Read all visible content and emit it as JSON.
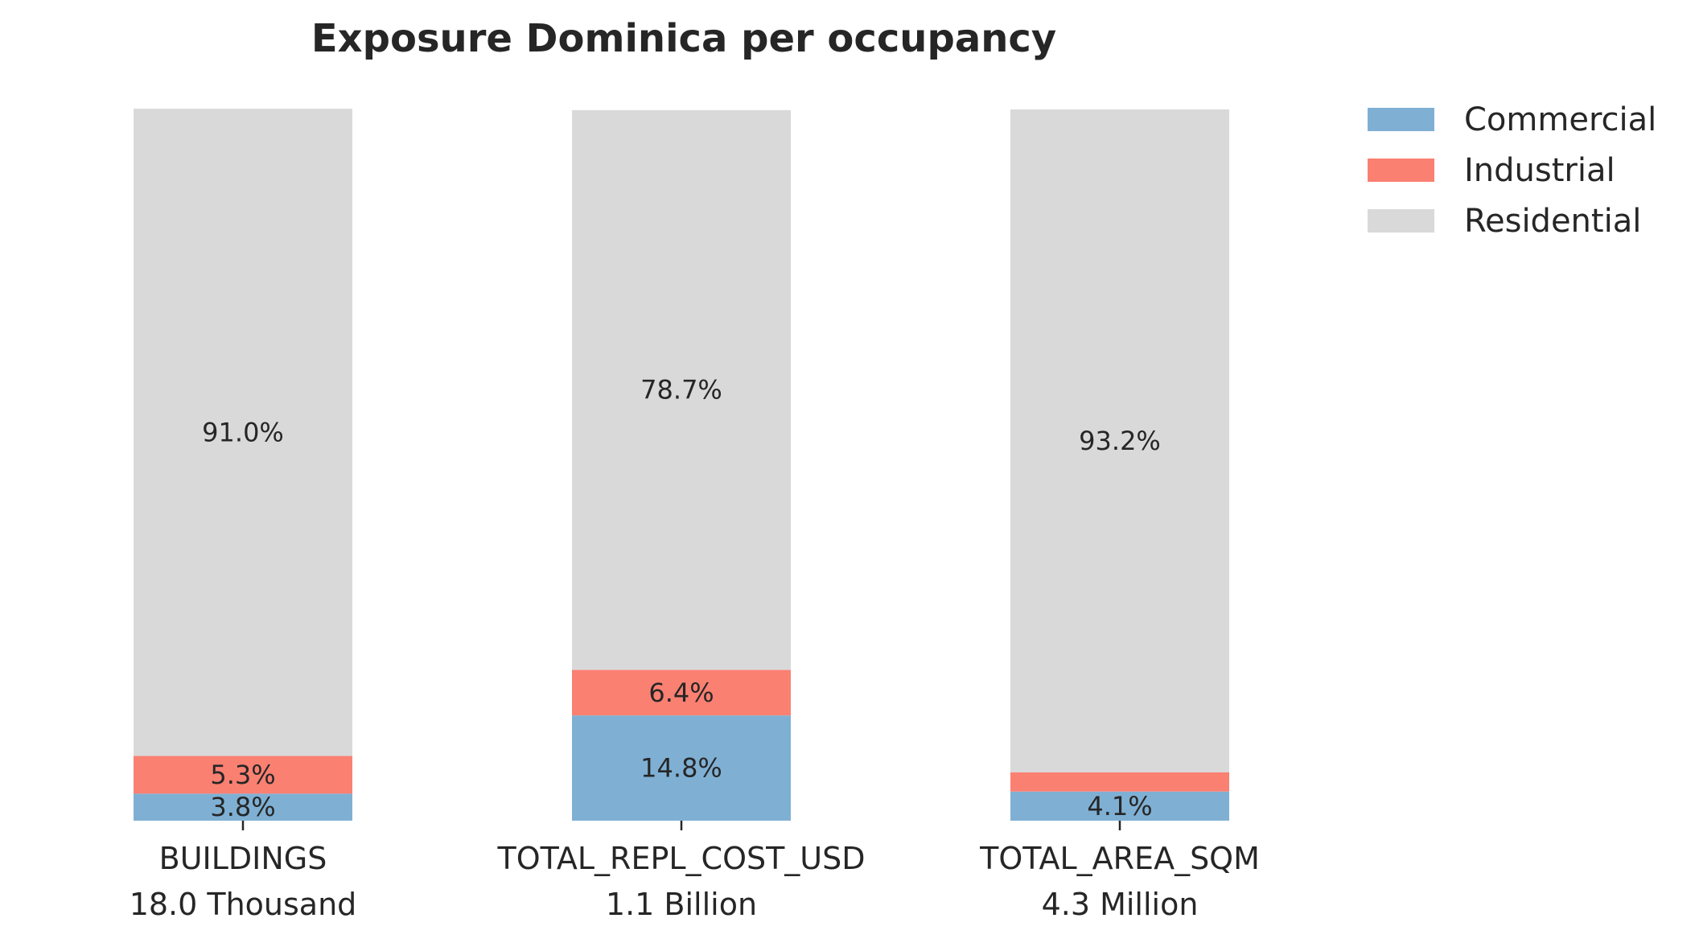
{
  "chart_data": {
    "type": "bar",
    "stacked": true,
    "normalized_percent": true,
    "title": "Exposure Dominica per occupancy",
    "xlabel": "",
    "ylabel": "",
    "ylim": [
      0,
      100
    ],
    "grid": false,
    "legend_position": "top-right",
    "categories": [
      {
        "name": "BUILDINGS",
        "total": "18.0 Thousand"
      },
      {
        "name": "TOTAL_REPL_COST_USD",
        "total": "1.1 Billion"
      },
      {
        "name": "TOTAL_AREA_SQM",
        "total": "4.3 Million"
      }
    ],
    "series": [
      {
        "name": "Commercial",
        "color": "#7fb0d4",
        "values": [
          3.8,
          14.8,
          4.1
        ],
        "labels": [
          "3.8%",
          "14.8%",
          "4.1%"
        ]
      },
      {
        "name": "Industrial",
        "color": "#fa8072",
        "values": [
          5.3,
          6.4,
          2.7
        ],
        "labels": [
          "5.3%",
          "6.4%",
          ""
        ]
      },
      {
        "name": "Residential",
        "color": "#d9d9d9",
        "values": [
          91.0,
          78.7,
          93.2
        ],
        "labels": [
          "91.0%",
          "78.7%",
          "93.2%"
        ]
      }
    ]
  }
}
